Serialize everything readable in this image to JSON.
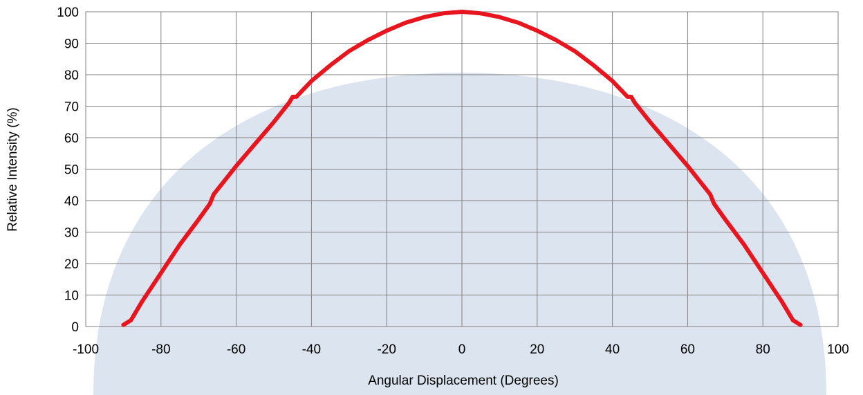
{
  "chart_data": {
    "type": "line",
    "title": "",
    "xlabel": "Angular Displacement (Degrees)",
    "ylabel": "Relative Intensity (%)",
    "xlim": [
      -100,
      100
    ],
    "ylim": [
      0,
      100
    ],
    "xticks": [
      -100,
      -80,
      -60,
      -40,
      -20,
      0,
      20,
      40,
      60,
      80,
      100
    ],
    "yticks": [
      0,
      10,
      20,
      30,
      40,
      50,
      60,
      70,
      80,
      90,
      100
    ],
    "grid": true,
    "series": [
      {
        "color": "#e8141e",
        "x": [
          -90,
          -88,
          -85,
          -80,
          -75,
          -70,
          -67,
          -66,
          -60,
          -55,
          -50,
          -46,
          -45,
          -44,
          -40,
          -35,
          -30,
          -25,
          -20,
          -15,
          -10,
          -5,
          0,
          5,
          10,
          15,
          20,
          25,
          30,
          35,
          40,
          44,
          45,
          46,
          50,
          55,
          60,
          66,
          67,
          70,
          75,
          80,
          85,
          88,
          90
        ],
        "y": [
          0.5,
          2,
          8,
          17,
          26,
          34,
          39,
          42,
          51,
          58,
          65,
          71,
          73,
          73,
          78,
          83,
          87.5,
          91,
          94,
          96.5,
          98.3,
          99.5,
          100,
          99.5,
          98.3,
          96.5,
          94,
          91,
          87.5,
          83,
          78,
          73,
          73,
          71,
          65,
          58,
          51,
          42,
          39,
          34,
          26,
          17,
          8,
          2,
          0.5
        ]
      }
    ]
  },
  "colors": {
    "background_shape": "#dbe4ef",
    "grid": "#808080",
    "frame": "#808080",
    "curve": "#e8141e"
  }
}
